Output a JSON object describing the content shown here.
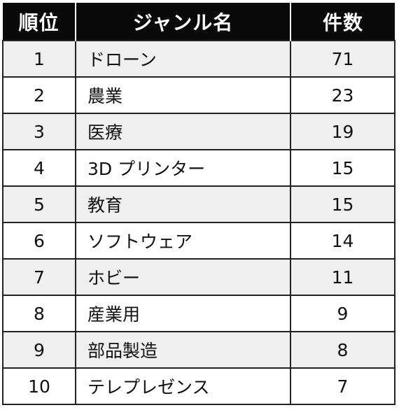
{
  "table": {
    "headers": {
      "rank": "順位",
      "genre": "ジャンル名",
      "count": "件数"
    },
    "rows": [
      {
        "rank": "1",
        "genre": "ドローン",
        "count": "71"
      },
      {
        "rank": "2",
        "genre": "農業",
        "count": "23"
      },
      {
        "rank": "3",
        "genre": "医療",
        "count": "19"
      },
      {
        "rank": "4",
        "genre": "3D プリンター",
        "count": "15"
      },
      {
        "rank": "5",
        "genre": "教育",
        "count": "15"
      },
      {
        "rank": "6",
        "genre": "ソフトウェア",
        "count": "14"
      },
      {
        "rank": "7",
        "genre": "ホビー",
        "count": "11"
      },
      {
        "rank": "8",
        "genre": "産業用",
        "count": "9"
      },
      {
        "rank": "9",
        "genre": "部品製造",
        "count": "8"
      },
      {
        "rank": "10",
        "genre": "テレプレゼンス",
        "count": "7"
      }
    ]
  },
  "colors": {
    "header_background": "#0a0a0a",
    "header_text": "#ffffff",
    "odd_row_background": "#efefef",
    "even_row_background": "#ffffff",
    "border": "#222222"
  }
}
